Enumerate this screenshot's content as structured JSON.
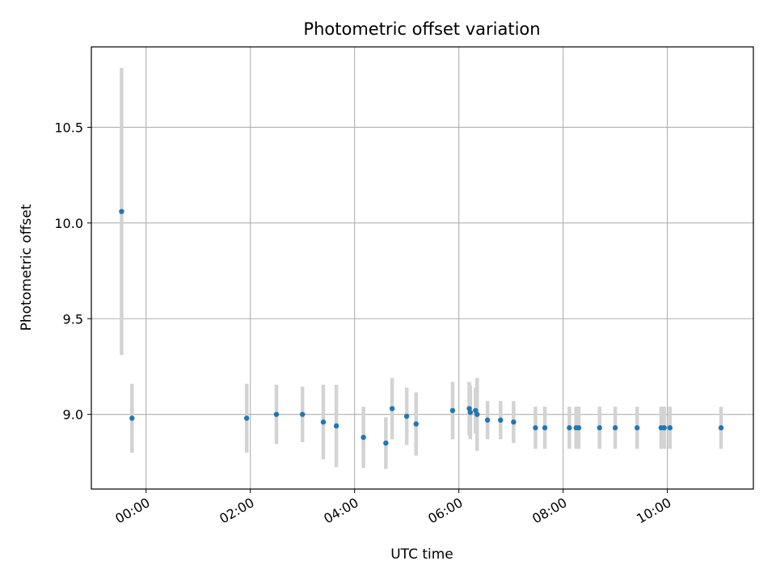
{
  "chart_data": {
    "type": "scatter",
    "title": "Photometric offset variation",
    "xlabel": "UTC time",
    "ylabel": "Photometric offset",
    "x_unit": "hours (UTC)",
    "xlim": [
      -1.05,
      11.65
    ],
    "ylim": [
      8.61,
      10.92
    ],
    "grid": true,
    "x_ticks": [
      {
        "value": 0,
        "label": "00:00"
      },
      {
        "value": 2,
        "label": "02:00"
      },
      {
        "value": 4,
        "label": "04:00"
      },
      {
        "value": 6,
        "label": "06:00"
      },
      {
        "value": 8,
        "label": "08:00"
      },
      {
        "value": 10,
        "label": "10:00"
      }
    ],
    "y_ticks": [
      {
        "value": 9.0,
        "label": "9.0"
      },
      {
        "value": 9.5,
        "label": "9.5"
      },
      {
        "value": 10.0,
        "label": "10.0"
      },
      {
        "value": 10.5,
        "label": "10.5"
      }
    ],
    "series": [
      {
        "marker_color": "#1f77b4",
        "errorbar_color": "#d3d3d3",
        "points": [
          {
            "x": -0.47,
            "y": 10.06,
            "err": 0.75
          },
          {
            "x": -0.27,
            "y": 8.98,
            "err": 0.18
          },
          {
            "x": 1.93,
            "y": 8.98,
            "err": 0.18
          },
          {
            "x": 2.5,
            "y": 9.0,
            "err": 0.155
          },
          {
            "x": 3.0,
            "y": 9.0,
            "err": 0.145
          },
          {
            "x": 3.4,
            "y": 8.96,
            "err": 0.195
          },
          {
            "x": 3.65,
            "y": 8.94,
            "err": 0.215
          },
          {
            "x": 4.17,
            "y": 8.88,
            "err": 0.16
          },
          {
            "x": 4.6,
            "y": 8.85,
            "err": 0.135
          },
          {
            "x": 4.72,
            "y": 9.03,
            "err": 0.16
          },
          {
            "x": 5.0,
            "y": 8.99,
            "err": 0.15
          },
          {
            "x": 5.18,
            "y": 8.95,
            "err": 0.165
          },
          {
            "x": 5.88,
            "y": 9.02,
            "err": 0.15
          },
          {
            "x": 6.2,
            "y": 9.03,
            "err": 0.14
          },
          {
            "x": 6.22,
            "y": 9.01,
            "err": 0.14
          },
          {
            "x": 6.32,
            "y": 9.02,
            "err": 0.12
          },
          {
            "x": 6.35,
            "y": 9.0,
            "err": 0.19
          },
          {
            "x": 6.55,
            "y": 8.97,
            "err": 0.1
          },
          {
            "x": 6.8,
            "y": 8.97,
            "err": 0.1
          },
          {
            "x": 7.05,
            "y": 8.96,
            "err": 0.11
          },
          {
            "x": 7.47,
            "y": 8.93,
            "err": 0.11
          },
          {
            "x": 7.65,
            "y": 8.93,
            "err": 0.11
          },
          {
            "x": 8.12,
            "y": 8.93,
            "err": 0.11
          },
          {
            "x": 8.25,
            "y": 8.93,
            "err": 0.11
          },
          {
            "x": 8.3,
            "y": 8.93,
            "err": 0.11
          },
          {
            "x": 8.7,
            "y": 8.93,
            "err": 0.11
          },
          {
            "x": 9.0,
            "y": 8.93,
            "err": 0.11
          },
          {
            "x": 9.42,
            "y": 8.93,
            "err": 0.11
          },
          {
            "x": 9.88,
            "y": 8.93,
            "err": 0.11
          },
          {
            "x": 9.94,
            "y": 8.93,
            "err": 0.11
          },
          {
            "x": 10.05,
            "y": 8.93,
            "err": 0.11
          },
          {
            "x": 11.03,
            "y": 8.93,
            "err": 0.11
          }
        ]
      }
    ]
  }
}
